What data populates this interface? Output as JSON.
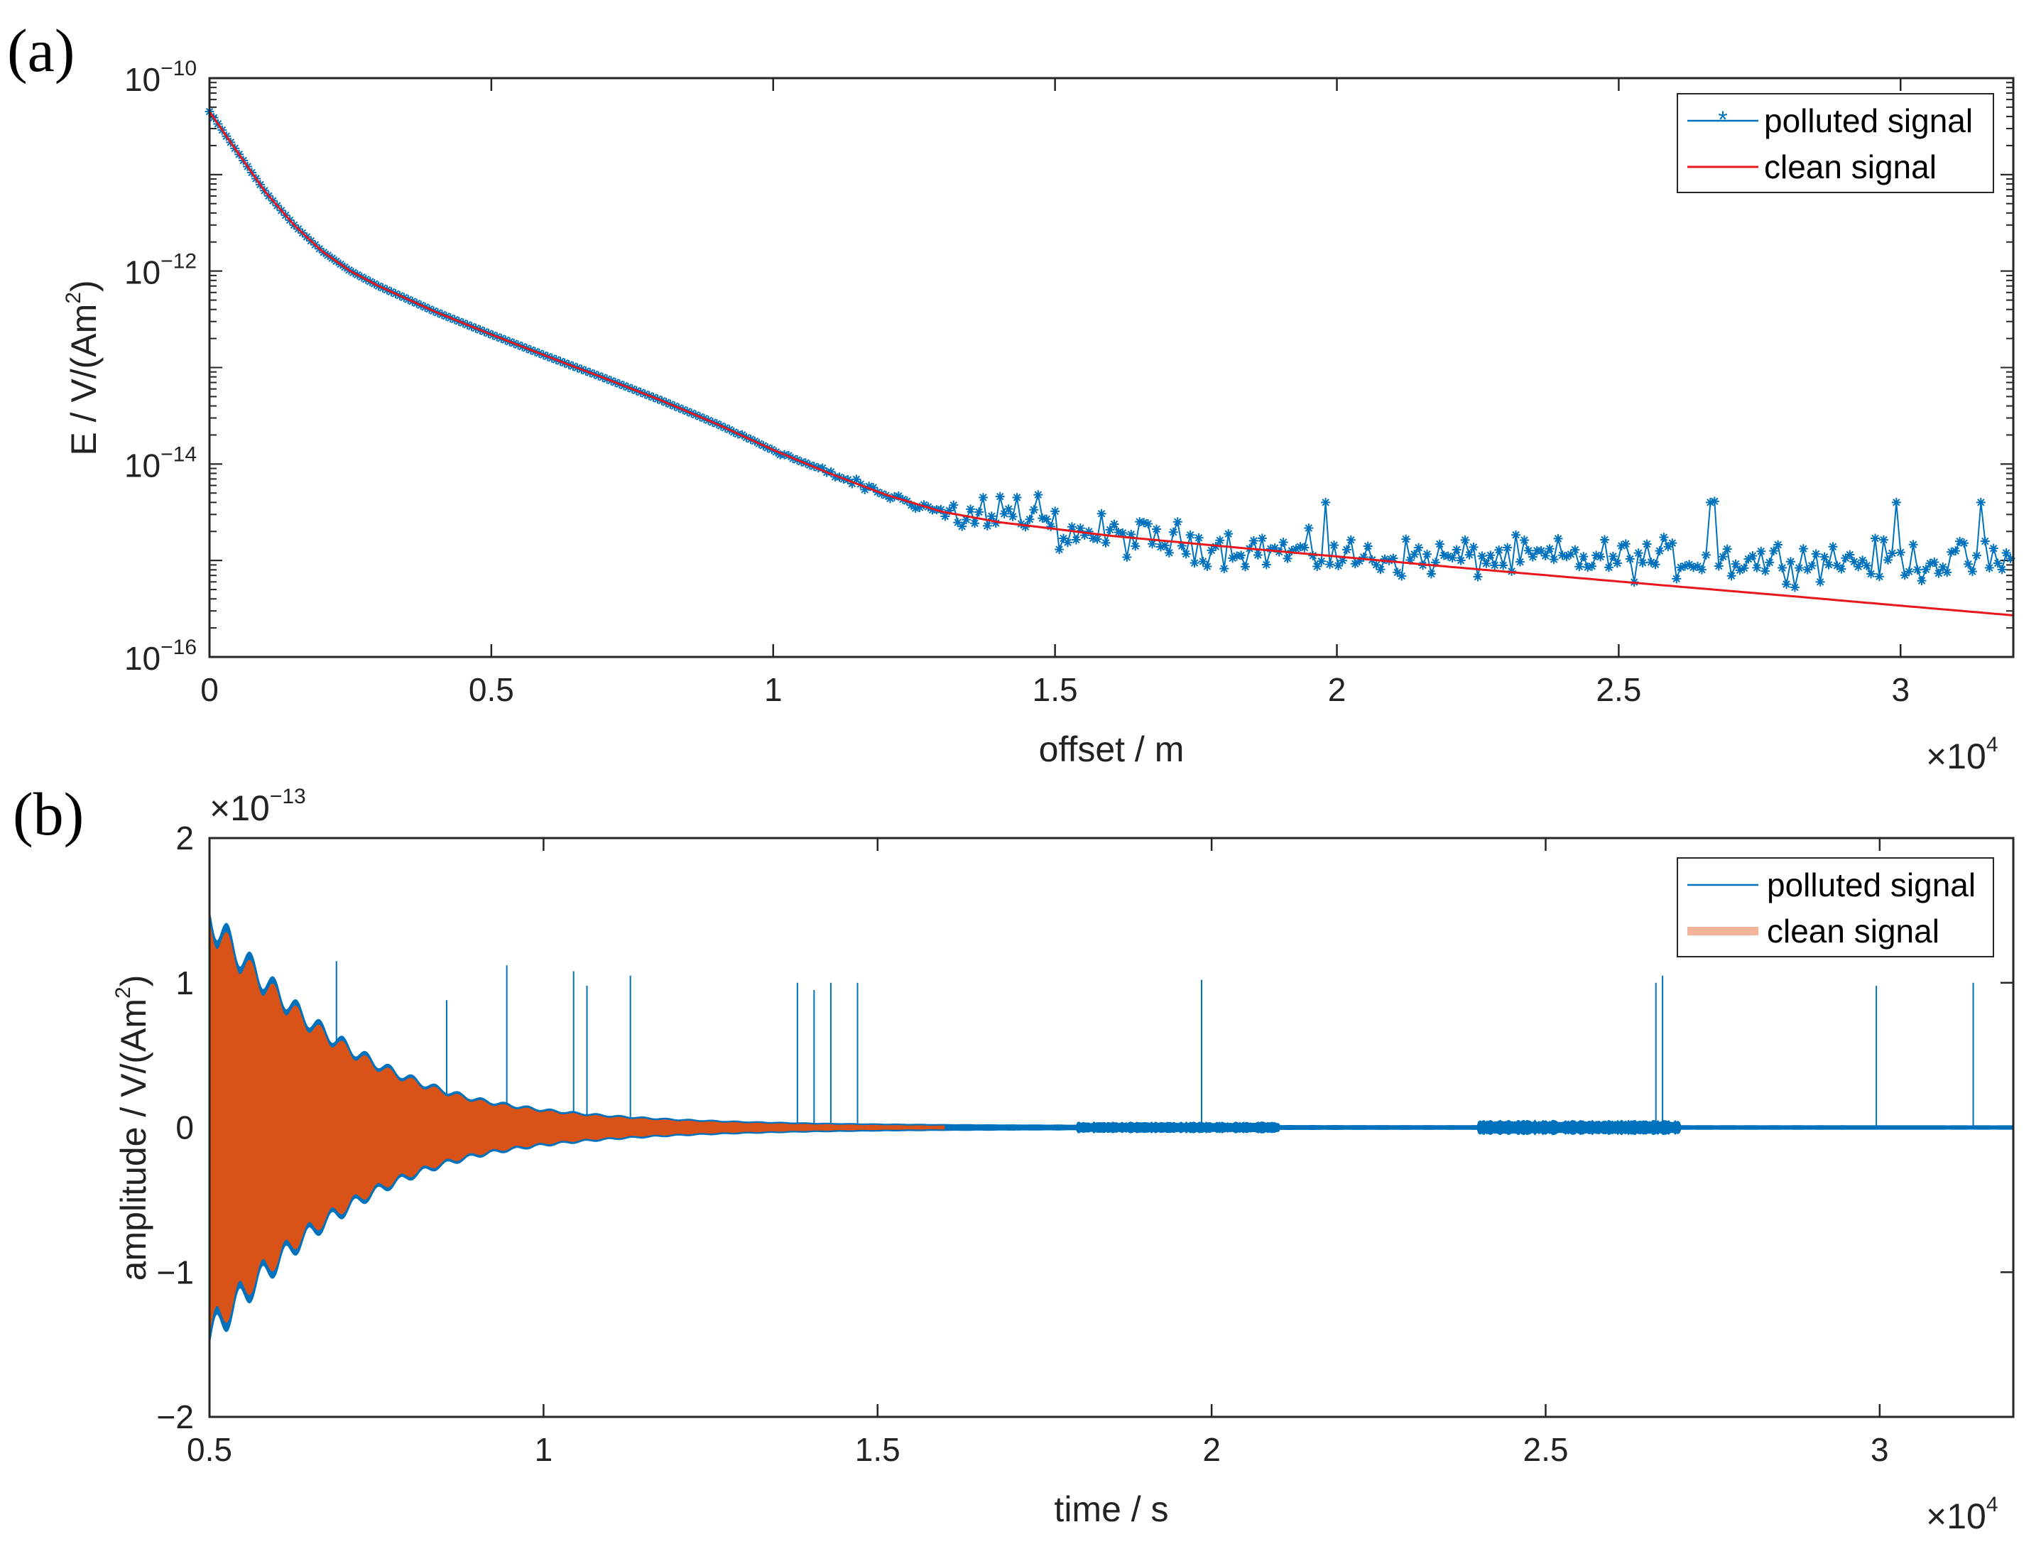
{
  "chart_data": [
    {
      "panel": "(a)",
      "type": "line",
      "xlabel": "offset / m",
      "x_multiplier": "×10",
      "x_multiplier_exp": "4",
      "ylabel": "E / V/(Am",
      "ylabel_sup": "2",
      "ylabel_end": ")",
      "yscale": "log",
      "xlim": [
        0,
        32000
      ],
      "ylim": [
        1e-16,
        1e-10
      ],
      "xticks": [
        {
          "v": 0,
          "label": "0"
        },
        {
          "v": 5000,
          "label": "0.5"
        },
        {
          "v": 10000,
          "label": "1"
        },
        {
          "v": 15000,
          "label": "1.5"
        },
        {
          "v": 20000,
          "label": "2"
        },
        {
          "v": 25000,
          "label": "2.5"
        },
        {
          "v": 30000,
          "label": "3"
        }
      ],
      "yticks": [
        {
          "v": 1e-10,
          "base": "10",
          "exp": "−10"
        },
        {
          "v": 1e-12,
          "base": "10",
          "exp": "−12"
        },
        {
          "v": 1e-14,
          "base": "10",
          "exp": "−14"
        },
        {
          "v": 1e-16,
          "base": "10",
          "exp": "−16"
        }
      ],
      "series": [
        {
          "name": "polluted signal",
          "color": "#0072bd",
          "marker": "*",
          "model": "clean below 1.3e4 m, noise floor ~1e-15 above",
          "spikes": [
            {
              "x": 13700,
              "y": 4.5e-15
            },
            {
              "x": 14000,
              "y": 4.6e-15
            },
            {
              "x": 14300,
              "y": 4.5e-15
            },
            {
              "x": 14700,
              "y": 4.8e-15
            },
            {
              "x": 19800,
              "y": 4e-15
            },
            {
              "x": 26600,
              "y": 4e-15
            },
            {
              "x": 26700,
              "y": 4.1e-15
            },
            {
              "x": 29900,
              "y": 4e-15
            },
            {
              "x": 31400,
              "y": 4e-15
            }
          ]
        },
        {
          "name": "clean signal",
          "color": "#e8171b",
          "points": [
            [
              0,
              4.5e-11
            ],
            [
              300,
              2.5e-11
            ],
            [
              600,
              1.4e-11
            ],
            [
              1000,
              6.5e-12
            ],
            [
              1500,
              3e-12
            ],
            [
              2000,
              1.6e-12
            ],
            [
              2500,
              1e-12
            ],
            [
              3000,
              7e-13
            ],
            [
              4000,
              3.8e-13
            ],
            [
              5000,
              2.2e-13
            ],
            [
              6000,
              1.3e-13
            ],
            [
              7000,
              7.8e-14
            ],
            [
              8000,
              4.6e-14
            ],
            [
              9000,
              2.6e-14
            ],
            [
              10000,
              1.4e-14
            ],
            [
              11000,
              8e-15
            ],
            [
              12000,
              4.8e-15
            ],
            [
              13000,
              3.2e-15
            ],
            [
              14000,
              2.5e-15
            ],
            [
              16000,
              1.8e-15
            ],
            [
              18000,
              1.4e-15
            ],
            [
              20000,
              1.1e-15
            ],
            [
              22000,
              8.6e-16
            ],
            [
              24000,
              6.8e-16
            ],
            [
              26000,
              5.4e-16
            ],
            [
              28000,
              4.3e-16
            ],
            [
              30000,
              3.4e-16
            ],
            [
              32000,
              2.7e-16
            ]
          ]
        }
      ]
    },
    {
      "panel": "(b)",
      "type": "line",
      "xlabel": "time / s",
      "x_multiplier": "×10",
      "x_multiplier_exp": "4",
      "y_multiplier": "×10",
      "y_multiplier_exp": "−13",
      "ylabel": "amplitude / V/(Am",
      "ylabel_sup": "2",
      "ylabel_end": ")",
      "xlim": [
        5000,
        32000
      ],
      "ylim": [
        -2,
        2
      ],
      "xticks": [
        {
          "v": 5000,
          "label": "0.5"
        },
        {
          "v": 10000,
          "label": "1"
        },
        {
          "v": 15000,
          "label": "1.5"
        },
        {
          "v": 20000,
          "label": "2"
        },
        {
          "v": 25000,
          "label": "2.5"
        },
        {
          "v": 30000,
          "label": "3"
        }
      ],
      "yticks": [
        {
          "v": 2,
          "label": "2"
        },
        {
          "v": 1,
          "label": "1"
        },
        {
          "v": 0,
          "label": "0"
        },
        {
          "v": -1,
          "label": "−1"
        },
        {
          "v": -2,
          "label": "−2"
        }
      ],
      "series": [
        {
          "name": "polluted signal",
          "color": "#0072bd",
          "spikes": [
            {
              "x": 6900,
              "y": 1.15
            },
            {
              "x": 8550,
              "y": 0.88
            },
            {
              "x": 9450,
              "y": 1.12
            },
            {
              "x": 10450,
              "y": 1.08
            },
            {
              "x": 10650,
              "y": 0.98
            },
            {
              "x": 11300,
              "y": 1.05
            },
            {
              "x": 13800,
              "y": 1.0
            },
            {
              "x": 14050,
              "y": 0.95
            },
            {
              "x": 14300,
              "y": 1.0
            },
            {
              "x": 14700,
              "y": 1.0
            },
            {
              "x": 19850,
              "y": 1.02
            },
            {
              "x": 26650,
              "y": 1.0
            },
            {
              "x": 26750,
              "y": 1.05
            },
            {
              "x": 29950,
              "y": 0.98
            },
            {
              "x": 31400,
              "y": 1.0
            }
          ],
          "noise_bands": [
            {
              "from": 18000,
              "to": 21000,
              "amplitude": 0.03
            },
            {
              "from": 24000,
              "to": 27000,
              "amplitude": 0.04
            }
          ]
        },
        {
          "name": "clean signal",
          "color": "#d95319",
          "envelope": [
            [
              5000,
              1.4
            ],
            [
              6000,
              0.9
            ],
            [
              7000,
              0.55
            ],
            [
              8000,
              0.32
            ],
            [
              9000,
              0.18
            ],
            [
              10000,
              0.11
            ],
            [
              11000,
              0.07
            ],
            [
              12000,
              0.045
            ],
            [
              13000,
              0.03
            ],
            [
              14000,
              0.02
            ],
            [
              16000,
              0.01
            ],
            [
              20000,
              0.004
            ],
            [
              32000,
              0.002
            ]
          ]
        }
      ]
    }
  ]
}
